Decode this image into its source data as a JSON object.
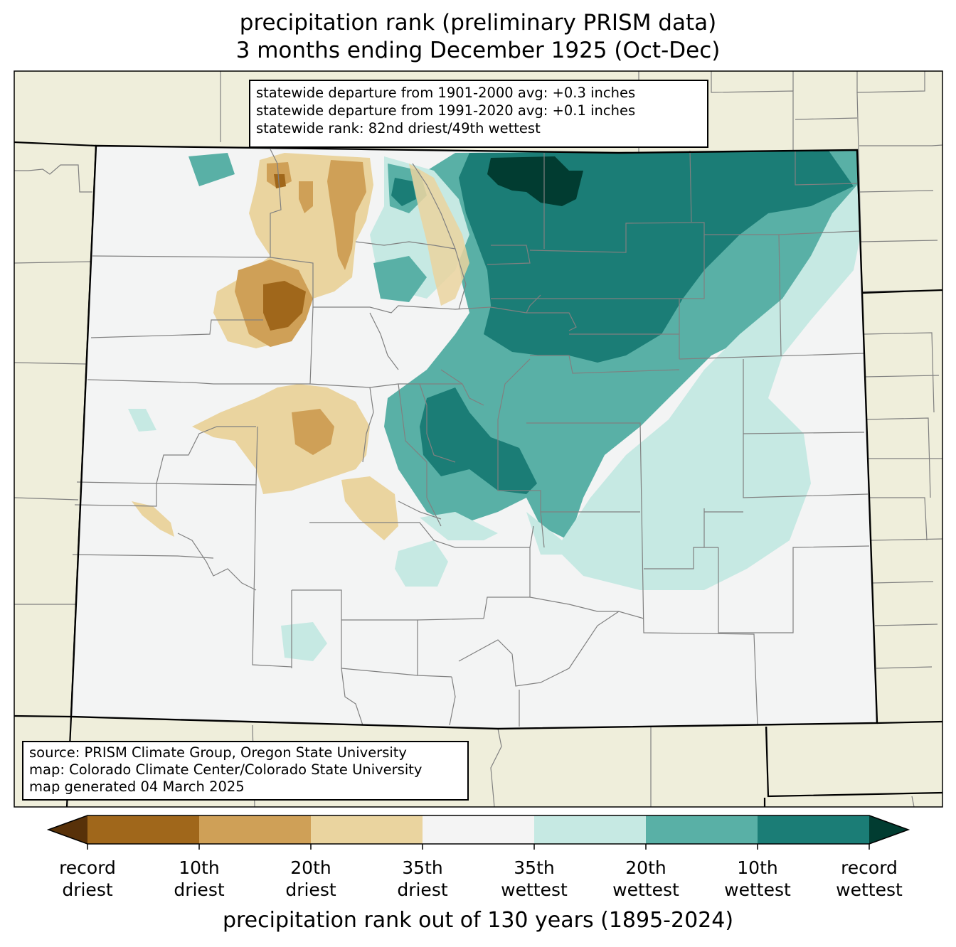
{
  "header": {
    "title_line1": "precipitation rank (preliminary PRISM data)",
    "title_line2": "3 months ending December 1925 (Oct-Dec)"
  },
  "stats_box": {
    "line1": "statewide departure from 1901-2000 avg: +0.3 inches",
    "line2": "statewide departure from 1991-2020 avg: +0.1 inches",
    "line3": "statewide rank: 82nd driest/49th wettest"
  },
  "source_box": {
    "line1": "source: PRISM Climate Group, Oregon State University",
    "line2": "map: Colorado Climate Center/Colorado State University",
    "line3": "map generated 04 March 2025"
  },
  "colorbar": {
    "title": "precipitation rank out of 130 years (1895-2024)",
    "colors": [
      "#583109",
      "#a0671b",
      "#cfa057",
      "#ead49f",
      "#f4f4f4",
      "#c6e9e3",
      "#59b0a6",
      "#1b7d76",
      "#013c31"
    ],
    "ticks": [
      {
        "top": "record",
        "bottom": "driest"
      },
      {
        "top": "10th",
        "bottom": "driest"
      },
      {
        "top": "20th",
        "bottom": "driest"
      },
      {
        "top": "35th",
        "bottom": "driest"
      },
      {
        "top": "35th",
        "bottom": "wettest"
      },
      {
        "top": "20th",
        "bottom": "wettest"
      },
      {
        "top": "10th",
        "bottom": "wettest"
      },
      {
        "top": "record",
        "bottom": "wettest"
      }
    ]
  },
  "map_colors": {
    "background": "#efeedb",
    "state_fill": "#f3f4f4",
    "county_lines": "#808080"
  }
}
